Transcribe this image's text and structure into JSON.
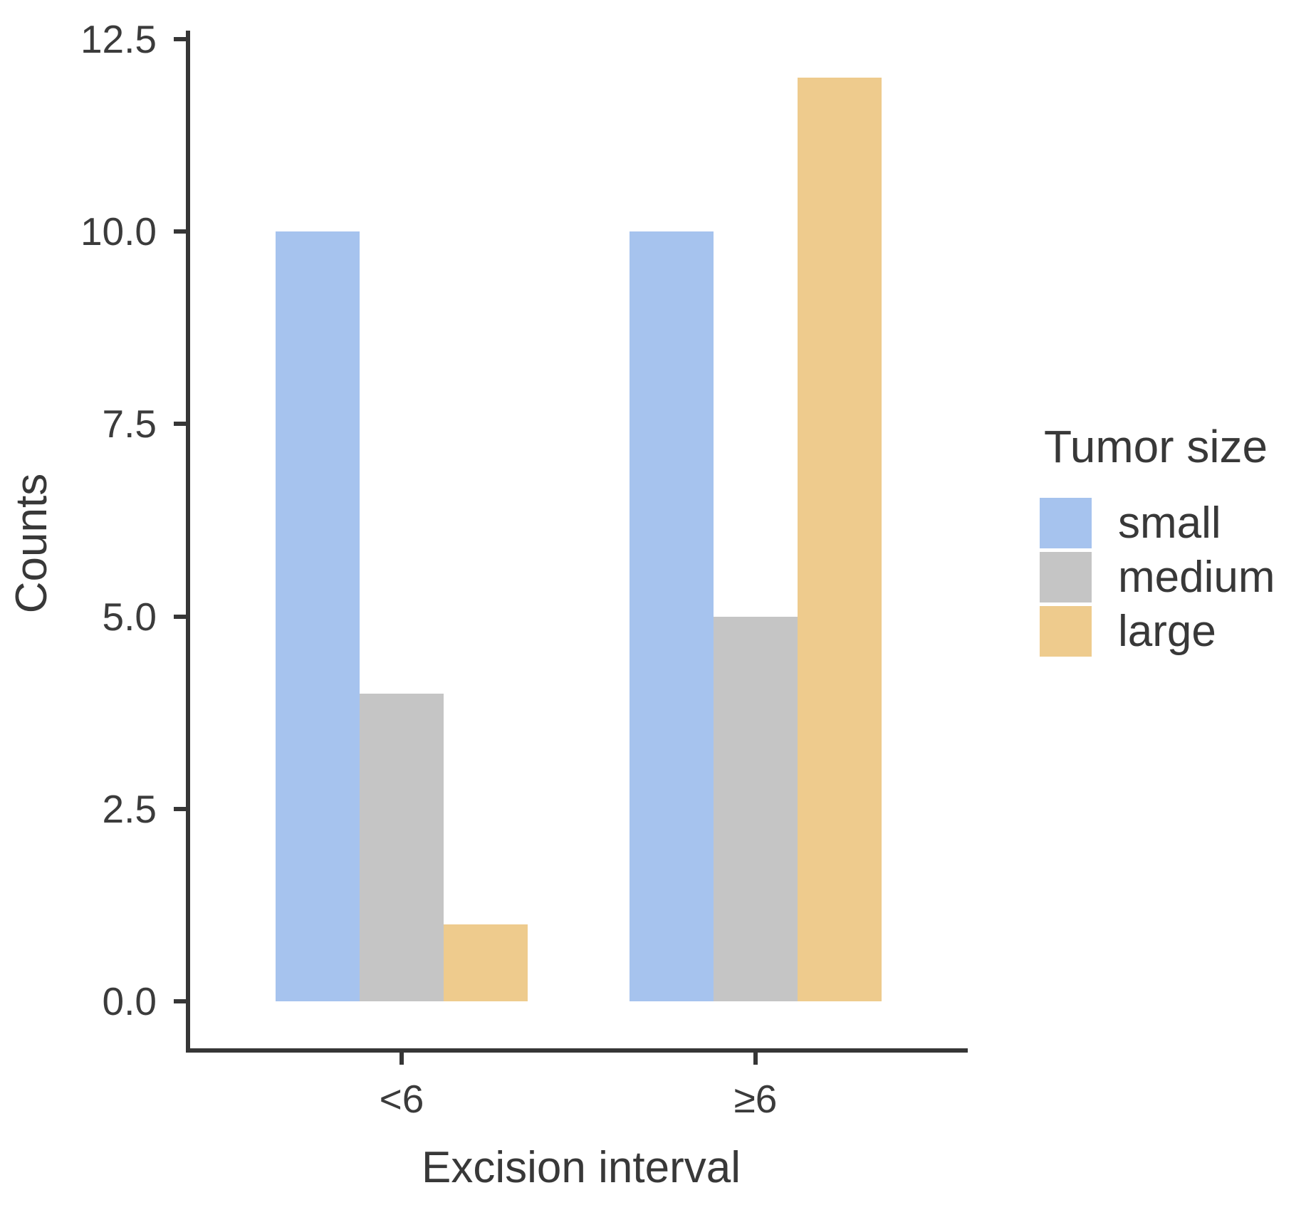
{
  "chart_data": {
    "type": "bar",
    "xlabel": "Excision interval",
    "ylabel": "Counts",
    "categories": [
      "<6",
      "≥6"
    ],
    "series": [
      {
        "name": "small",
        "color": "#a6c3ee",
        "values": [
          10,
          10
        ]
      },
      {
        "name": "medium",
        "color": "#c5c5c5",
        "values": [
          4,
          5
        ]
      },
      {
        "name": "large",
        "color": "#eecb8d",
        "values": [
          1,
          12
        ]
      }
    ],
    "ylim": [
      0,
      12.5
    ],
    "y_ticks": [
      0,
      2.5,
      5,
      7.5,
      10,
      12.5
    ],
    "y_tick_labels": [
      "0.0",
      "2.5",
      "5.0",
      "7.5",
      "10.0",
      "12.5"
    ],
    "grid": false,
    "legend_title": "Tumor size",
    "legend_position": "right"
  },
  "colors": {
    "axis": "#363636",
    "text": "#3b3b3b",
    "background": "#ffffff"
  }
}
